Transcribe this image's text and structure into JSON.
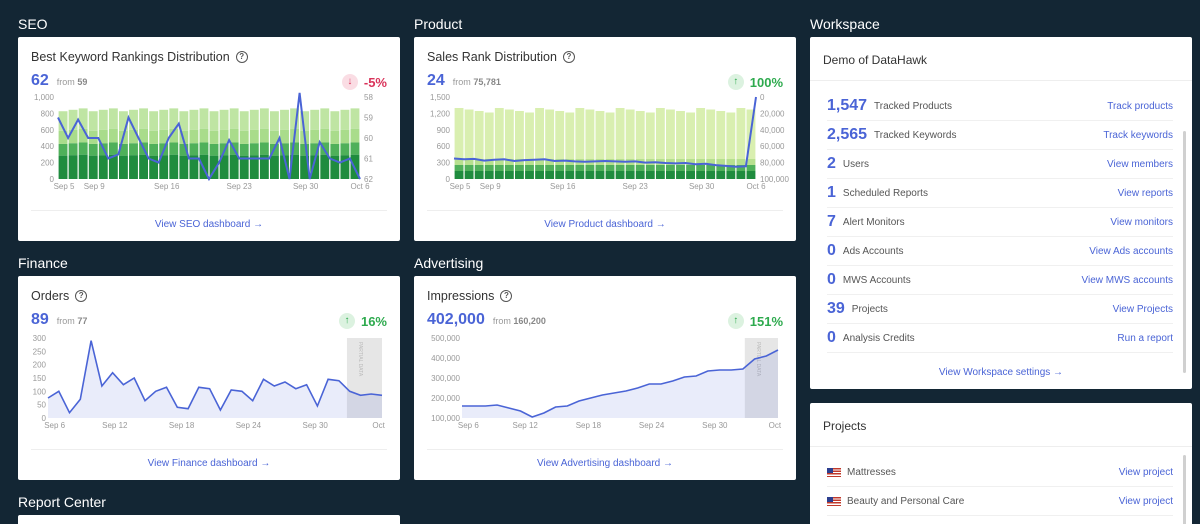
{
  "sections": {
    "seo": "SEO",
    "product": "Product",
    "workspace": "Workspace",
    "finance": "Finance",
    "advertising": "Advertising",
    "report_center": "Report Center"
  },
  "colors": {
    "accent": "#4a64d6",
    "up": "#2eaa4e",
    "down": "#d9335a",
    "bar_dark": "#1f8c3e",
    "bar_mid": "#4fb05a",
    "bar_light": "#a9dc8b",
    "bar_pale": "#d9efb0"
  },
  "seo": {
    "title": "Best Keyword Rankings Distribution",
    "value": "62",
    "from_label": "from",
    "from_value": "59",
    "change": "-5%",
    "arrow": "↓",
    "link": "View SEO dashboard →"
  },
  "product": {
    "title": "Sales Rank Distribution",
    "value": "24",
    "from_label": "from",
    "from_value": "75,781",
    "change": "100%",
    "arrow": "↑",
    "link": "View Product dashboard →"
  },
  "finance": {
    "title": "Orders",
    "value": "89",
    "from_label": "from",
    "from_value": "77",
    "change": "16%",
    "arrow": "↑",
    "link": "View Finance dashboard →"
  },
  "advertising": {
    "title": "Impressions",
    "value": "402,000",
    "from_label": "from",
    "from_value": "160,200",
    "change": "151%",
    "arrow": "↑",
    "link": "View Advertising dashboard →"
  },
  "workspace": {
    "name": "Demo of DataHawk",
    "rows": [
      {
        "num": "1,547",
        "label": "Tracked Products",
        "link": "Track products"
      },
      {
        "num": "2,565",
        "label": "Tracked Keywords",
        "link": "Track keywords"
      },
      {
        "num": "2",
        "label": "Users",
        "link": "View members"
      },
      {
        "num": "1",
        "label": "Scheduled Reports",
        "link": "View reports"
      },
      {
        "num": "7",
        "label": "Alert Monitors",
        "link": "View monitors"
      },
      {
        "num": "0",
        "label": "Ads Accounts",
        "link": "View Ads accounts"
      },
      {
        "num": "0",
        "label": "MWS Accounts",
        "link": "View MWS accounts"
      },
      {
        "num": "39",
        "label": "Projects",
        "link": "View Projects"
      },
      {
        "num": "0",
        "label": "Analysis Credits",
        "link": "Run a report"
      }
    ],
    "footer": "View Workspace settings →"
  },
  "projects": {
    "title": "Projects",
    "rows": [
      {
        "name": "Mattresses",
        "link": "View project"
      },
      {
        "name": "Beauty and Personal Care",
        "link": "View project"
      }
    ]
  },
  "chart_data": [
    {
      "id": "seo",
      "type": "bar",
      "x_ticks": [
        "Sep 5",
        "Sep 9",
        "Sep 16",
        "Sep 23",
        "Sep 30",
        "Oct 6"
      ],
      "y_ticks": [
        "1,000",
        "800",
        "600",
        "400",
        "200",
        "0"
      ],
      "y2_ticks": [
        "58",
        "59",
        "60",
        "61",
        "62"
      ],
      "ylim": [
        0,
        1000
      ],
      "y2lim": [
        58,
        62
      ],
      "stacks": {
        "bottom": 300,
        "mid": 150,
        "top": 170,
        "light": 250
      },
      "bar_count": 30,
      "line": [
        59,
        60,
        59.1,
        60,
        60,
        61,
        60.8,
        59,
        60,
        61,
        61.2,
        60,
        59.3,
        61,
        61,
        62,
        61.2,
        60.1,
        61,
        61,
        61,
        61,
        60,
        62,
        57.8,
        62,
        60.2,
        61,
        61.2,
        61,
        62
      ]
    },
    {
      "id": "product",
      "type": "bar",
      "x_ticks": [
        "Sep 5",
        "Sep 9",
        "Sep 16",
        "Sep 23",
        "Sep 30",
        "Oct 6"
      ],
      "y_ticks": [
        "1,500",
        "1,200",
        "900",
        "600",
        "300",
        "0"
      ],
      "y2_ticks": [
        "0",
        "20,000",
        "40,000",
        "60,000",
        "80,000",
        "100,000"
      ],
      "ylim": [
        0,
        1500
      ],
      "y2lim": [
        0,
        100000
      ],
      "bar_count": 30,
      "line": [
        75000,
        76000,
        75500,
        77500,
        76500,
        76000,
        78000,
        77000,
        76500,
        76000,
        78000,
        77500,
        78500,
        79000,
        78500,
        78000,
        78500,
        79000,
        78500,
        80000,
        79500,
        80500,
        81000,
        80500,
        82000,
        81500,
        83000,
        84000,
        85000,
        84500,
        0
      ]
    },
    {
      "id": "finance",
      "type": "area",
      "x_ticks": [
        "Sep 6",
        "Sep 12",
        "Sep 18",
        "Sep 24",
        "Sep 30",
        "Oct"
      ],
      "y_ticks": [
        "300",
        "250",
        "200",
        "150",
        "100",
        "50",
        "0"
      ],
      "ylim": [
        0,
        300
      ],
      "partial_label": "PARTIAL DATA",
      "values": [
        75,
        100,
        20,
        70,
        290,
        120,
        170,
        125,
        150,
        65,
        100,
        115,
        40,
        35,
        115,
        110,
        30,
        105,
        100,
        65,
        145,
        120,
        135,
        110,
        125,
        45,
        145,
        140,
        100,
        85,
        90,
        85
      ]
    },
    {
      "id": "advertising",
      "type": "area",
      "x_ticks": [
        "Sep 6",
        "Sep 12",
        "Sep 18",
        "Sep 24",
        "Sep 30",
        "Oct"
      ],
      "y_ticks": [
        "500,000",
        "400,000",
        "300,000",
        "200,000",
        "100,000"
      ],
      "ylim": [
        100000,
        500000
      ],
      "partial_label": "PARTIAL DATA",
      "values": [
        160000,
        160000,
        160000,
        165000,
        150000,
        135000,
        105000,
        125000,
        155000,
        160000,
        185000,
        200000,
        215000,
        225000,
        235000,
        250000,
        270000,
        270000,
        285000,
        305000,
        310000,
        335000,
        340000,
        340000,
        345000,
        395000,
        410000,
        440000
      ]
    }
  ]
}
